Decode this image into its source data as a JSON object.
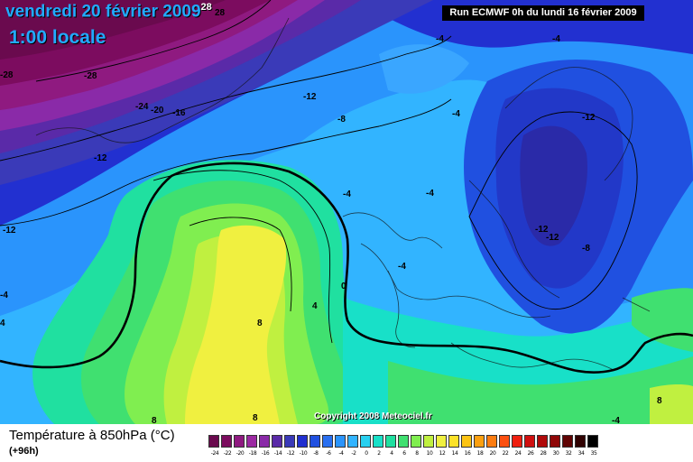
{
  "title": {
    "date": "vendredi 20 février 2009",
    "date_sup": "28",
    "hour": "1:00 locale"
  },
  "run_info": "Run ECMWF 0h du lundi 16 février 2009",
  "copyright": "Copyright 2008 Meteociel.fr",
  "footer": {
    "variable": "Température à 850hPa (°C)",
    "lead_time": "(+96h)"
  },
  "contour_labels": [
    "28",
    "-28",
    "-24",
    "-20",
    "-16",
    "-12",
    "-8",
    "-4",
    "-4",
    "-4",
    "-4",
    "-4",
    "-4",
    "-12",
    "-12",
    "-12",
    "-12",
    "-8",
    "0",
    "4",
    "8",
    "8",
    "8",
    "8",
    "-4",
    "-12",
    "4",
    "-4"
  ],
  "scale": {
    "ticks": [
      "-24",
      "-22",
      "-20",
      "-18",
      "-16",
      "-14",
      "-12",
      "-10",
      "-8",
      "-6",
      "-4",
      "-2",
      "0",
      "2",
      "4",
      "6",
      "8",
      "10",
      "12",
      "14",
      "16",
      "18",
      "20",
      "22",
      "24",
      "26",
      "28",
      "30",
      "32",
      "34",
      "35"
    ],
    "colors": [
      "#6a0a4e",
      "#7c0c5f",
      "#8f1a80",
      "#9c2aa2",
      "#8a2aa8",
      "#5a2aa8",
      "#3a3ab8",
      "#2230d0",
      "#2050e0",
      "#2a70f0",
      "#2a94fc",
      "#32b4ff",
      "#28d0f0",
      "#18e0c8",
      "#20e0a0",
      "#40e070",
      "#80ee50",
      "#c0f040",
      "#f0f040",
      "#fce228",
      "#fcc414",
      "#fca010",
      "#fc7c10",
      "#fc5010",
      "#f02010",
      "#d01010",
      "#b00a0a",
      "#900808",
      "#600404",
      "#300202",
      "#000000"
    ]
  }
}
